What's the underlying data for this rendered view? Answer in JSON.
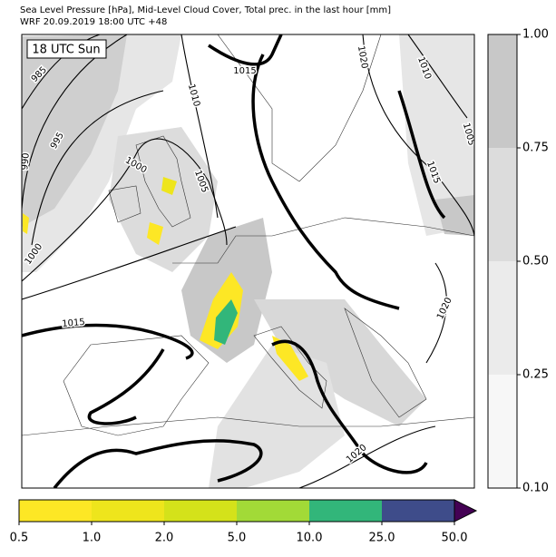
{
  "header": {
    "title": "Sea Level Pressure [hPa], Mid-Level Cloud Cover, Total prec. in the last hour [mm]",
    "subtitle": "WRF 20.09.2019 18:00 UTC +48"
  },
  "map": {
    "time_label": "18 UTC Sun",
    "isobar_labels": [
      "985",
      "990",
      "995",
      "1000",
      "1005",
      "1010",
      "1015",
      "1020",
      "1010",
      "1005",
      "1015",
      "1000",
      "1015",
      "1020",
      "1020"
    ]
  },
  "cloud_colorbar": {
    "ticks": [
      "0.10",
      "0.25",
      "0.50",
      "0.75",
      "1.00"
    ],
    "colors": [
      "#f7f7f7",
      "#ebebeb",
      "#dcdcdc",
      "#c8c8c8"
    ]
  },
  "precip_colorbar": {
    "ticks": [
      "0.5",
      "1.0",
      "2.0",
      "5.0",
      "10.0",
      "25.0",
      "50.0"
    ],
    "colors": [
      "#fde725",
      "#eee51c",
      "#d4e21a",
      "#a2da37",
      "#32b67a",
      "#3e4c8a"
    ],
    "extend_color": "#440154"
  }
}
